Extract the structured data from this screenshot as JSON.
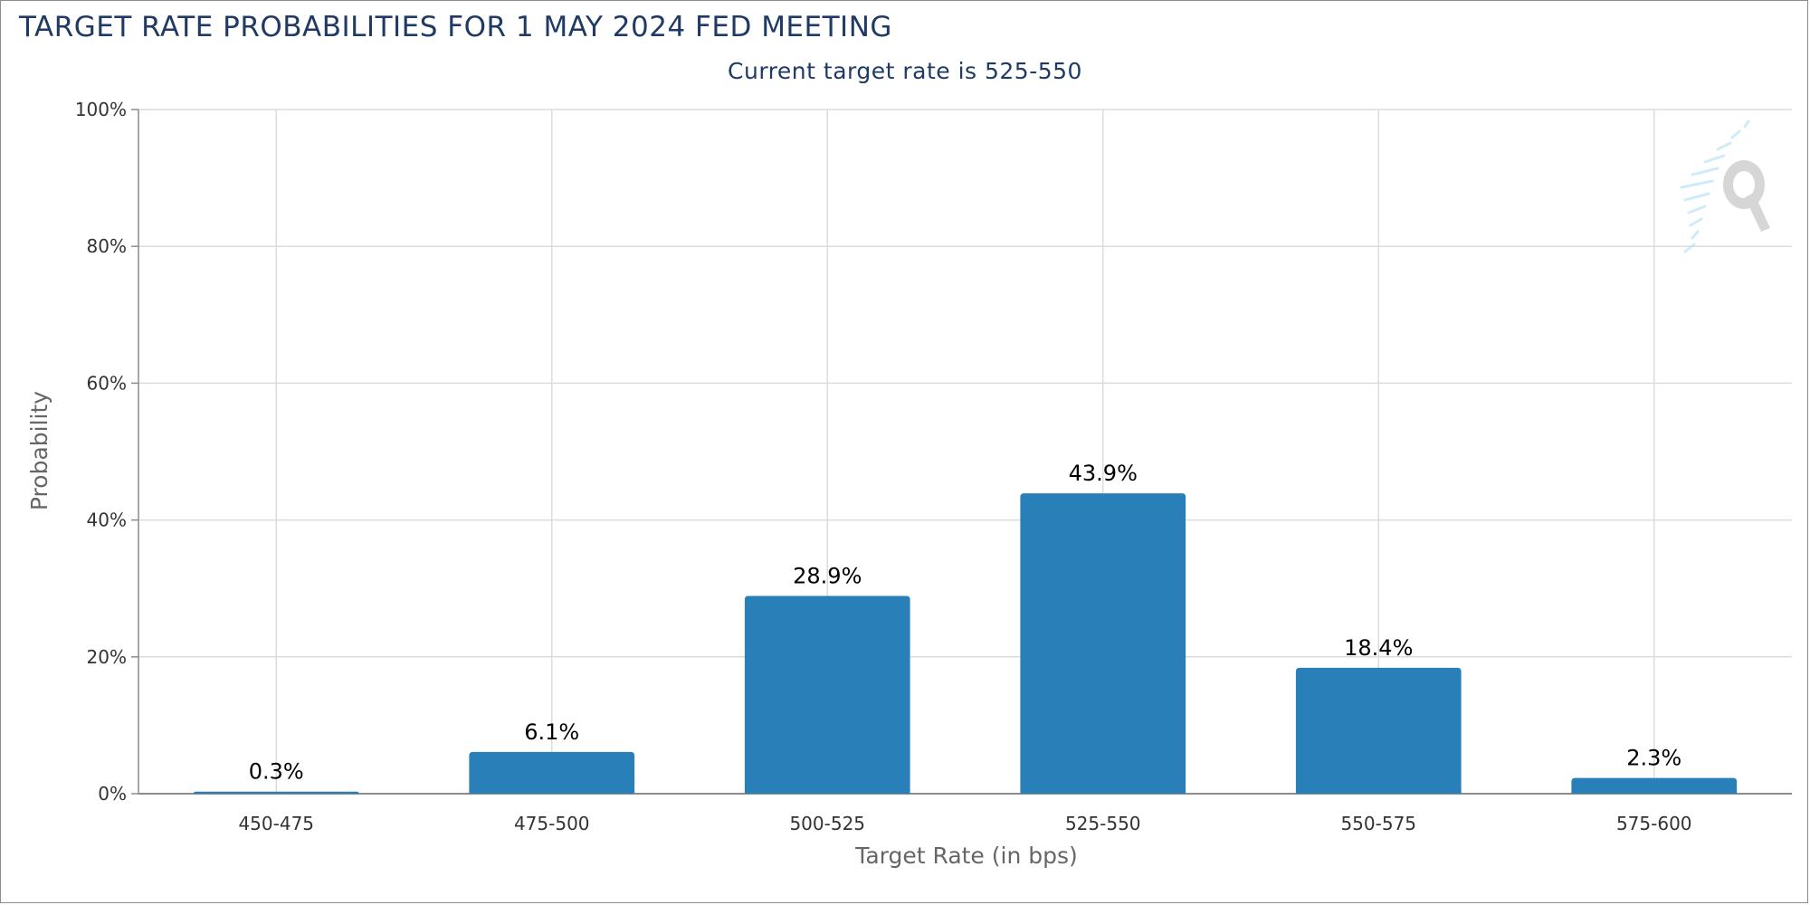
{
  "chart_data": {
    "type": "bar",
    "title": "TARGET RATE PROBABILITIES FOR 1 MAY 2024 FED MEETING",
    "subtitle": "Current target rate is 525-550",
    "xlabel": "Target Rate (in bps)",
    "ylabel": "Probability",
    "categories": [
      "450-475",
      "475-500",
      "500-525",
      "525-550",
      "550-575",
      "575-600"
    ],
    "values": [
      0.3,
      6.1,
      28.9,
      43.9,
      18.4,
      2.3
    ],
    "data_labels": [
      "0.3%",
      "6.1%",
      "28.9%",
      "43.9%",
      "18.4%",
      "2.3%"
    ],
    "ylim": [
      0,
      100
    ],
    "yticks": [
      0,
      20,
      40,
      60,
      80,
      100
    ],
    "ytick_labels": [
      "0%",
      "20%",
      "40%",
      "60%",
      "80%",
      "100%"
    ],
    "grid": true,
    "legend": "none",
    "bar_color": "#2980b9",
    "grid_color": "#dcdcdc",
    "axis_color": "#8c8c8c",
    "watermark_icon": "q-logo-icon"
  }
}
